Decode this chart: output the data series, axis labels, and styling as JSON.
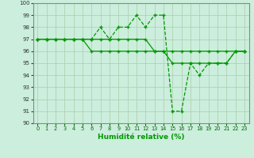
{
  "xlabel": "Humidité relative (%)",
  "xlim": [
    -0.5,
    23.5
  ],
  "ylim": [
    90,
    100
  ],
  "xticks": [
    0,
    1,
    2,
    3,
    4,
    5,
    6,
    7,
    8,
    9,
    10,
    11,
    12,
    13,
    14,
    15,
    16,
    17,
    18,
    19,
    20,
    21,
    22,
    23
  ],
  "yticks": [
    90,
    91,
    92,
    93,
    94,
    95,
    96,
    97,
    98,
    99,
    100
  ],
  "bg_color": "#cceedd",
  "grid_color": "#aaccaa",
  "line_color": "#009900",
  "line1_x": [
    0,
    1,
    2,
    3,
    4,
    5,
    6,
    7,
    8,
    9,
    10,
    11,
    12,
    13,
    14,
    15,
    16,
    17,
    18,
    19,
    20,
    21,
    22,
    23
  ],
  "line1_y": [
    97,
    97,
    97,
    97,
    97,
    97,
    97,
    98,
    97,
    98,
    98,
    99,
    98,
    99,
    99,
    91,
    91,
    95,
    94,
    95,
    95,
    95,
    96,
    96
  ],
  "line1_style": "--",
  "line2_x": [
    0,
    1,
    2,
    3,
    4,
    5,
    6,
    7,
    8,
    9,
    10,
    11,
    12,
    13,
    14,
    15,
    16,
    17,
    18,
    19,
    20,
    21,
    22,
    23
  ],
  "line2_y": [
    97,
    97,
    97,
    97,
    97,
    97,
    97,
    97,
    97,
    97,
    97,
    97,
    97,
    96,
    96,
    95,
    95,
    95,
    95,
    95,
    95,
    95,
    96,
    96
  ],
  "line2_style": "-",
  "line3_x": [
    0,
    1,
    2,
    3,
    4,
    5,
    6,
    7,
    8,
    9,
    10,
    11,
    12,
    13,
    14,
    15,
    16,
    17,
    18,
    19,
    20,
    21,
    22,
    23
  ],
  "line3_y": [
    97,
    97,
    97,
    97,
    97,
    97,
    96,
    96,
    96,
    96,
    96,
    96,
    96,
    96,
    96,
    96,
    96,
    96,
    96,
    96,
    96,
    96,
    96,
    96
  ],
  "line3_style": "-"
}
